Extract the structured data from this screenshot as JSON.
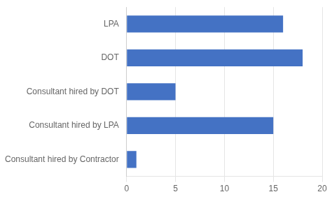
{
  "chart_data": {
    "type": "bar",
    "orientation": "horizontal",
    "categories": [
      "LPA",
      "DOT",
      "Consultant hired by DOT",
      "Consultant hired by LPA",
      "Consultant hired by Contractor"
    ],
    "values": [
      16,
      18,
      5,
      15,
      1
    ],
    "color": "#4472C4",
    "xlim": [
      0,
      20
    ],
    "xticks": [
      0,
      5,
      10,
      15,
      20
    ],
    "grid": true
  }
}
